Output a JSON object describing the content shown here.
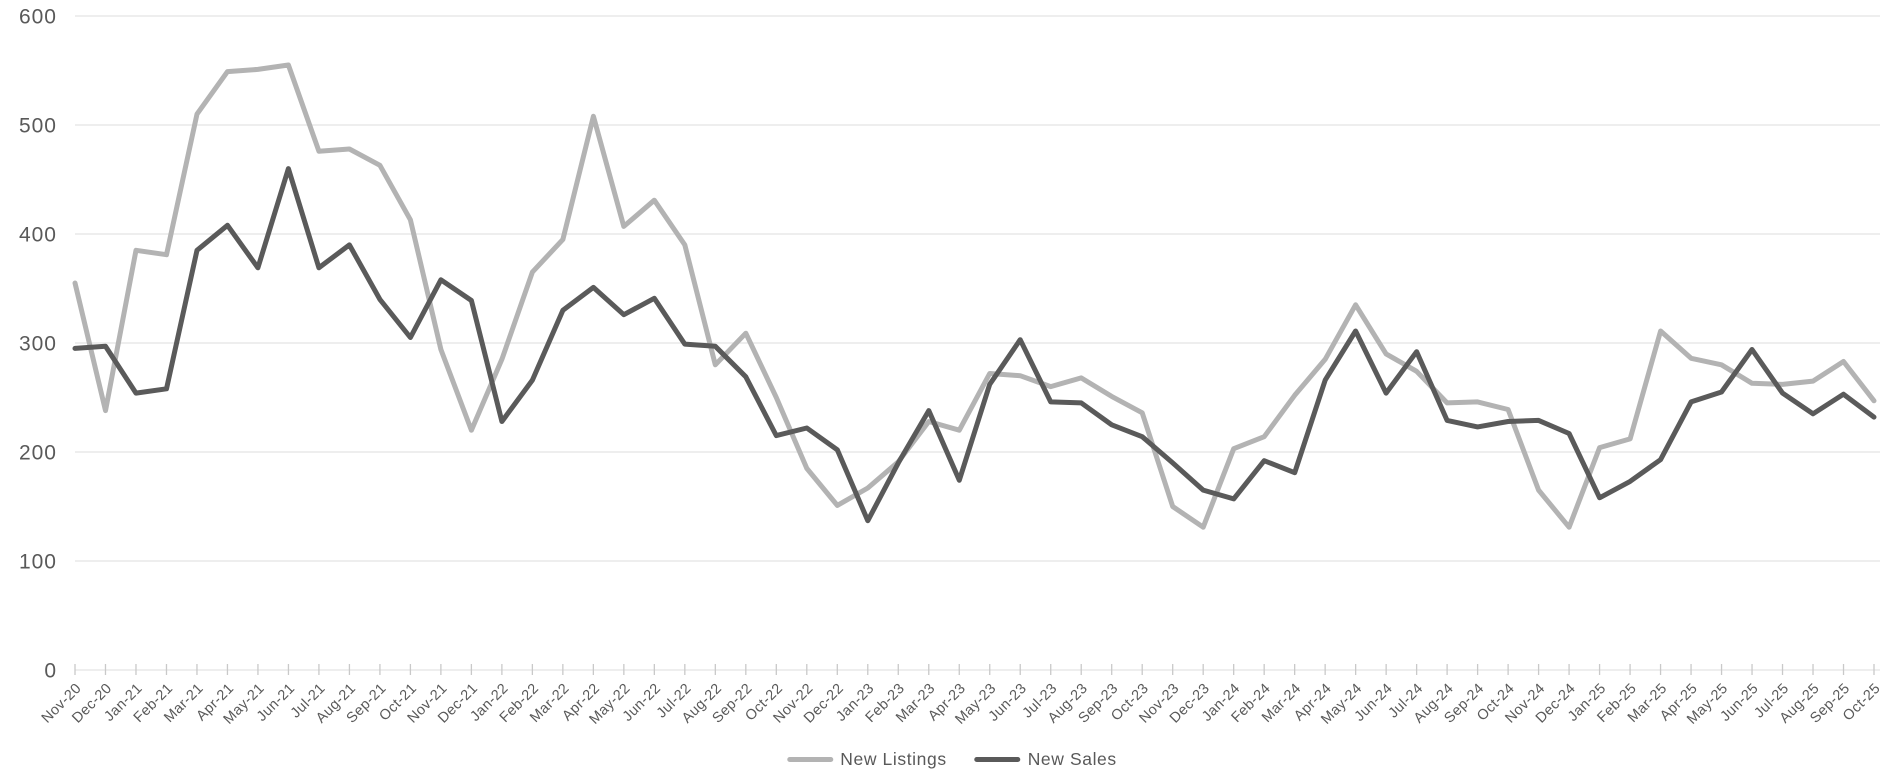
{
  "page": {
    "background_color": "#ffffff"
  },
  "chart_data": {
    "type": "line",
    "title": "",
    "xlabel": "",
    "ylabel": "",
    "ylim": [
      0,
      600
    ],
    "y_ticks": [
      0,
      100,
      200,
      300,
      400,
      500,
      600
    ],
    "grid": "horizontal",
    "legend_position": "bottom-center",
    "axis_text_color": "#595959",
    "grid_color": "#e4e4e4",
    "tick_color": "#c9c9c9",
    "x": [
      "Nov-20",
      "Dec-20",
      "Jan-21",
      "Feb-21",
      "Mar-21",
      "Apr-21",
      "May-21",
      "Jun-21",
      "Jul-21",
      "Aug-21",
      "Sep-21",
      "Oct-21",
      "Nov-21",
      "Dec-21",
      "Jan-22",
      "Feb-22",
      "Mar-22",
      "Apr-22",
      "May-22",
      "Jun-22",
      "Jul-22",
      "Aug-22",
      "Sep-22",
      "Oct-22",
      "Nov-22",
      "Dec-22",
      "Jan-23",
      "Feb-23",
      "Mar-23",
      "Apr-23",
      "May-23",
      "Jun-23",
      "Jul-23",
      "Aug-23",
      "Sep-23",
      "Oct-23",
      "Nov-23",
      "Dec-23",
      "Jan-24",
      "Feb-24",
      "Mar-24",
      "Apr-24",
      "May-24",
      "Jun-24",
      "Jul-24",
      "Aug-24",
      "Sep-24",
      "Oct-24",
      "Nov-24",
      "Dec-24",
      "Jan-25",
      "Feb-25",
      "Mar-25",
      "Apr-25",
      "May-25",
      "Jun-25",
      "Jul-25",
      "Aug-25",
      "Sep-25",
      "Oct-25"
    ],
    "series": [
      {
        "name": "New Listings",
        "color": "#b3b3b3",
        "values": [
          355,
          238,
          385,
          381,
          510,
          549,
          551,
          555,
          476,
          478,
          463,
          413,
          294,
          220,
          285,
          365,
          395,
          508,
          407,
          431,
          390,
          280,
          309,
          250,
          185,
          151,
          167,
          191,
          228,
          220,
          272,
          270,
          260,
          268,
          251,
          236,
          150,
          131,
          203,
          214,
          252,
          285,
          335,
          290,
          274,
          245,
          246,
          239,
          165,
          131,
          204,
          212,
          311,
          286,
          280,
          263,
          262,
          265,
          283,
          247
        ]
      },
      {
        "name": "New Sales",
        "color": "#5a5a5a",
        "values": [
          295,
          297,
          254,
          258,
          385,
          408,
          369,
          460,
          369,
          390,
          340,
          305,
          358,
          339,
          228,
          266,
          330,
          351,
          326,
          341,
          299,
          297,
          269,
          215,
          222,
          202,
          137,
          190,
          238,
          174,
          262,
          303,
          246,
          245,
          225,
          214,
          190,
          165,
          157,
          192,
          181,
          266,
          311,
          254,
          292,
          229,
          223,
          228,
          229,
          217,
          158,
          173,
          193,
          246,
          255,
          294,
          254,
          235,
          253,
          232
        ]
      }
    ]
  }
}
